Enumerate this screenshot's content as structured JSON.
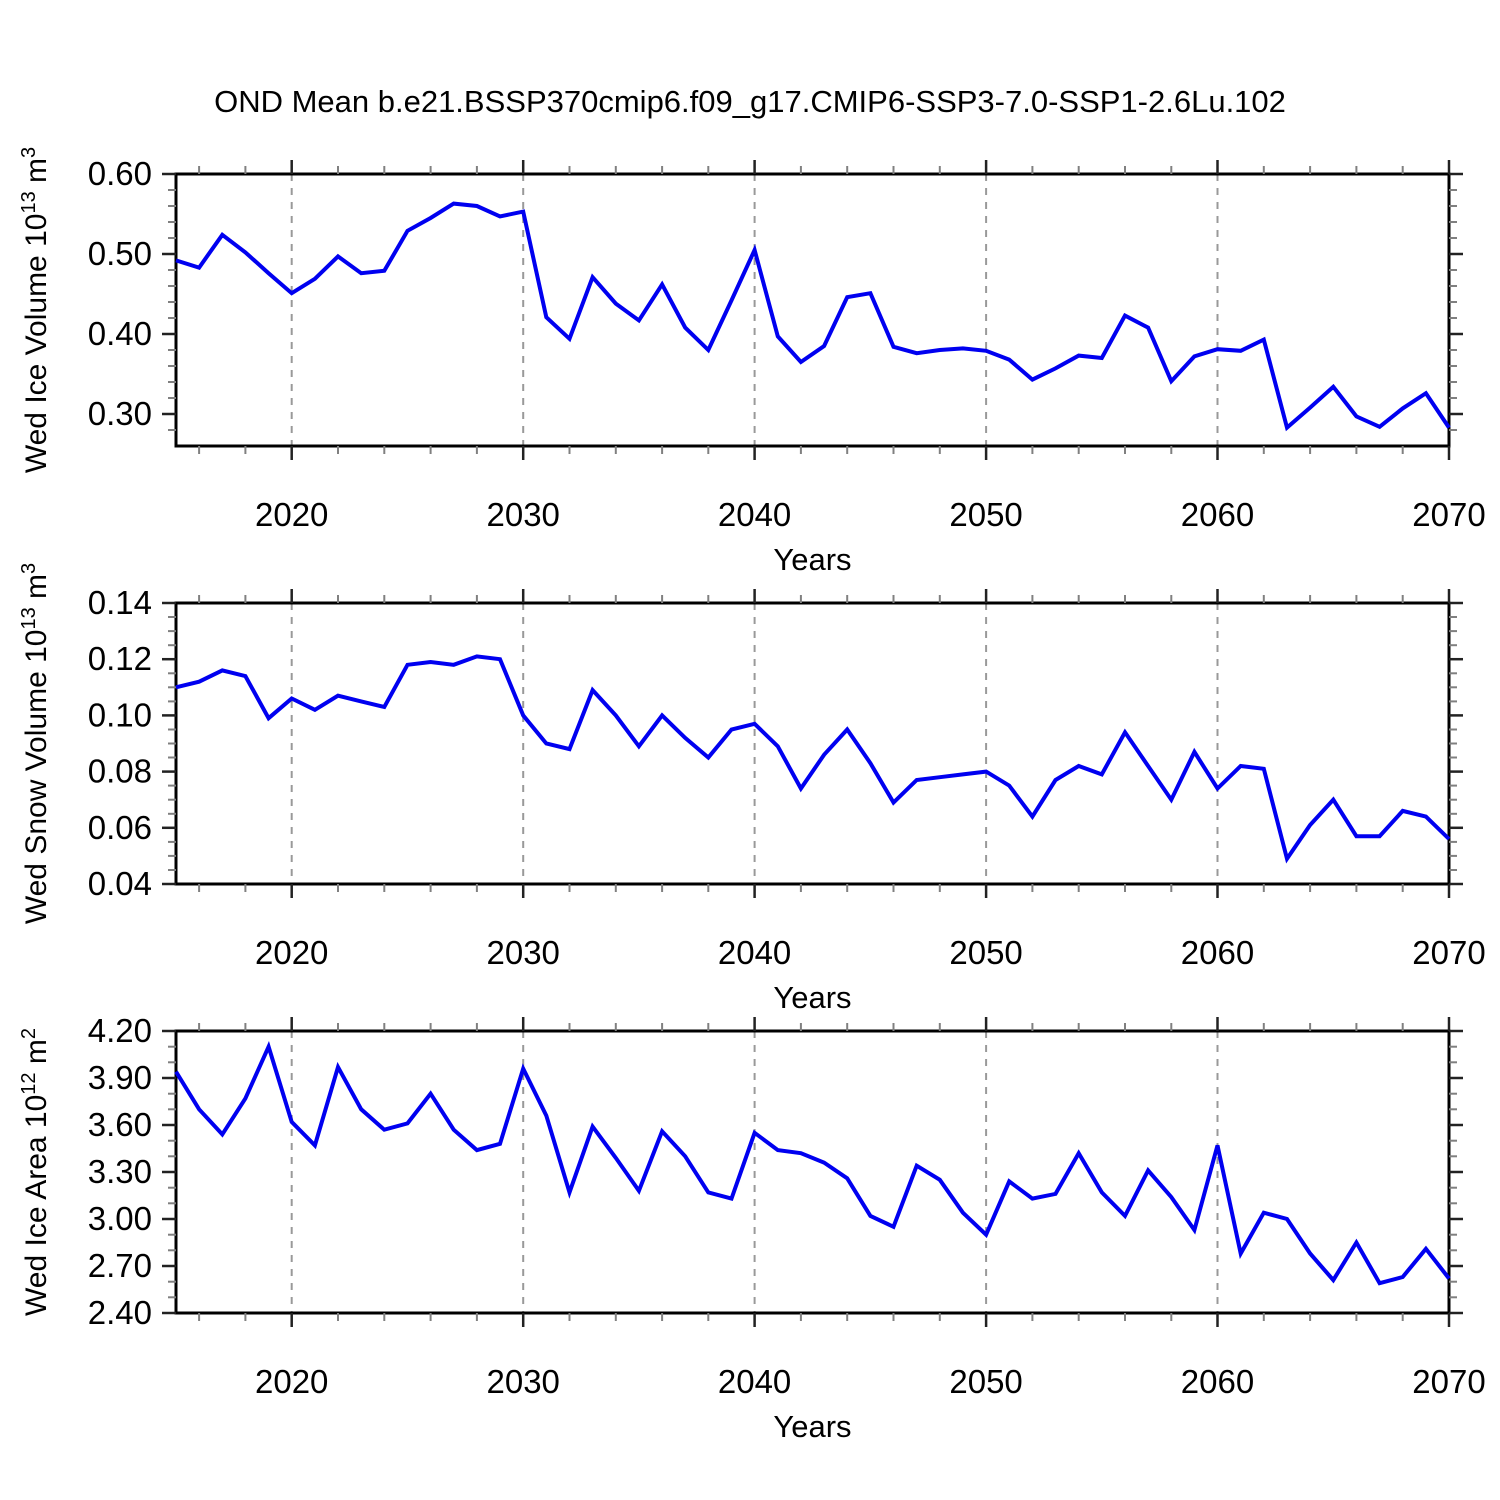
{
  "title": "OND Mean b.e21.BSSP370cmip6.f09_g17.CMIP6-SSP3-7.0-SSP1-2.6Lu.102",
  "style": {
    "line_color": "#0000f0",
    "grid_color": "#999999",
    "axis_color": "#000000",
    "major_tick_color": "#222222",
    "minor_tick_color": "#808080"
  },
  "chart_data": [
    {
      "type": "line",
      "name": "wed-ice-volume",
      "ylabel": "Wed Ice Volume 10^13 m^3",
      "ylabel_parts": [
        {
          "t": "Wed Ice Volume 10"
        },
        {
          "t": "13",
          "sup": true
        },
        {
          "t": " m"
        },
        {
          "t": "3",
          "sup": true
        }
      ],
      "xlabel": "Years",
      "xlim": [
        2015,
        2070
      ],
      "ylim": [
        0.26,
        0.6
      ],
      "xticks": [
        2020,
        2030,
        2040,
        2050,
        2060,
        2070
      ],
      "x_minor_step": 2,
      "yticks": [
        "0.30",
        "0.40",
        "0.50",
        "0.60"
      ],
      "y_minor_step": 0.02,
      "grid_x": [
        2020,
        2030,
        2040,
        2050,
        2060
      ],
      "x_start": 2015,
      "x_step": 1,
      "values": [
        0.492,
        0.483,
        0.524,
        0.502,
        0.476,
        0.451,
        0.469,
        0.497,
        0.476,
        0.479,
        0.529,
        0.545,
        0.563,
        0.56,
        0.547,
        0.553,
        0.421,
        0.394,
        0.471,
        0.438,
        0.417,
        0.462,
        0.408,
        0.38,
        0.442,
        0.505,
        0.397,
        0.365,
        0.385,
        0.446,
        0.451,
        0.384,
        0.376,
        0.38,
        0.382,
        0.379,
        0.368,
        0.343,
        0.357,
        0.373,
        0.37,
        0.423,
        0.408,
        0.341,
        0.372,
        0.381,
        0.379,
        0.393,
        0.283,
        0.308,
        0.334,
        0.297,
        0.284,
        0.307,
        0.326,
        0.283
      ]
    },
    {
      "type": "line",
      "name": "wed-snow-volume",
      "ylabel": "Wed Snow Volume 10^13 m^3",
      "ylabel_parts": [
        {
          "t": "Wed Snow Volume 10"
        },
        {
          "t": "13",
          "sup": true
        },
        {
          "t": " m"
        },
        {
          "t": "3",
          "sup": true
        }
      ],
      "xlabel": "Years",
      "xlim": [
        2015,
        2070
      ],
      "ylim": [
        0.04,
        0.14
      ],
      "xticks": [
        2020,
        2030,
        2040,
        2050,
        2060,
        2070
      ],
      "x_minor_step": 2,
      "yticks": [
        "0.04",
        "0.06",
        "0.08",
        "0.10",
        "0.12",
        "0.14"
      ],
      "y_minor_step": 0.005,
      "grid_x": [
        2020,
        2030,
        2040,
        2050,
        2060
      ],
      "x_start": 2015,
      "x_step": 1,
      "values": [
        0.11,
        0.112,
        0.116,
        0.114,
        0.099,
        0.106,
        0.102,
        0.107,
        0.105,
        0.103,
        0.118,
        0.119,
        0.118,
        0.121,
        0.12,
        0.1,
        0.09,
        0.088,
        0.109,
        0.1,
        0.089,
        0.1,
        0.092,
        0.085,
        0.095,
        0.097,
        0.089,
        0.074,
        0.086,
        0.095,
        0.083,
        0.069,
        0.077,
        0.078,
        0.079,
        0.08,
        0.075,
        0.064,
        0.077,
        0.082,
        0.079,
        0.094,
        0.082,
        0.07,
        0.087,
        0.074,
        0.082,
        0.081,
        0.049,
        0.061,
        0.07,
        0.057,
        0.057,
        0.066,
        0.064,
        0.056
      ]
    },
    {
      "type": "line",
      "name": "wed-ice-area",
      "ylabel": "Wed Ice Area 10^12 m^2",
      "ylabel_parts": [
        {
          "t": "Wed Ice Area 10"
        },
        {
          "t": "12",
          "sup": true
        },
        {
          "t": " m"
        },
        {
          "t": "2",
          "sup": true
        }
      ],
      "xlabel": "Years",
      "xlim": [
        2015,
        2070
      ],
      "ylim": [
        2.4,
        4.2
      ],
      "xticks": [
        2020,
        2030,
        2040,
        2050,
        2060,
        2070
      ],
      "x_minor_step": 2,
      "yticks": [
        "2.40",
        "2.70",
        "3.00",
        "3.30",
        "3.60",
        "3.90",
        "4.20"
      ],
      "y_minor_step": 0.1,
      "grid_x": [
        2020,
        2030,
        2040,
        2050,
        2060
      ],
      "x_start": 2015,
      "x_step": 1,
      "values": [
        3.94,
        3.7,
        3.54,
        3.77,
        4.1,
        3.62,
        3.47,
        3.97,
        3.7,
        3.57,
        3.61,
        3.8,
        3.57,
        3.44,
        3.48,
        3.96,
        3.66,
        3.17,
        3.59,
        3.39,
        3.18,
        3.56,
        3.4,
        3.17,
        3.13,
        3.55,
        3.44,
        3.42,
        3.36,
        3.26,
        3.02,
        2.95,
        3.34,
        3.25,
        3.04,
        2.9,
        3.24,
        3.13,
        3.16,
        3.42,
        3.17,
        3.02,
        3.31,
        3.14,
        2.93,
        3.47,
        2.78,
        3.04,
        3.0,
        2.78,
        2.61,
        2.85,
        2.59,
        2.63,
        2.81,
        2.62
      ]
    }
  ]
}
